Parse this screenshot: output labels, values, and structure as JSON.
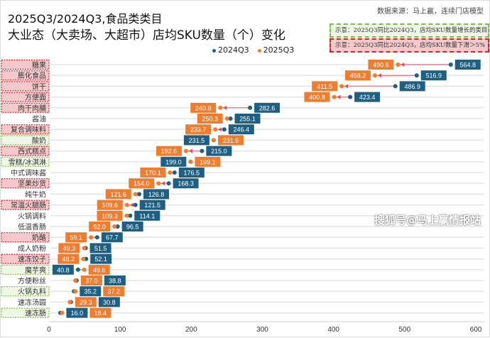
{
  "source": "数据来源：马上赢，连续门店模型",
  "title_line1": "2025Q3/2024Q3,食品类类目",
  "title_line2": "大业态（大卖场、大超市）店均SKU数量（个）变化",
  "note_green": "示意：2025Q3同比2024Q3，店均SKU数量增长的类目",
  "note_red": "示意：2025Q3同比2024Q3，店均SKU数量下滑＞5%",
  "watermark": "搜狐号@马上赢情报站",
  "colors": {
    "s2024": "#1f5f82",
    "s2025": "#ed7d31",
    "green": "#77c043",
    "red": "#d2232a"
  },
  "chart_data": {
    "type": "dumbbell",
    "title": "2025Q3/2024Q3,食品类类目 大业态（大卖场、大超市）店均SKU数量（个）变化",
    "legend": [
      "2024Q3",
      "2025Q3"
    ],
    "legend_position": "top-center",
    "xlim": [
      0,
      600
    ],
    "xticks": [
      "0",
      "100",
      "200",
      "300",
      "400",
      "500",
      "600"
    ],
    "grid": true,
    "categories": [
      {
        "name": "糖果",
        "v2024": 564.8,
        "v2025": 490.6,
        "flag": "red"
      },
      {
        "name": "膨化食品",
        "v2024": 516.9,
        "v2025": 458.2,
        "flag": "red"
      },
      {
        "name": "饼干",
        "v2024": 486.9,
        "v2025": 411.5,
        "flag": "red"
      },
      {
        "name": "方便面",
        "v2024": 423.4,
        "v2025": 400.8,
        "flag": "red"
      },
      {
        "name": "肉干肉脯",
        "v2024": 282.6,
        "v2025": 240.8,
        "flag": "red"
      },
      {
        "name": "酱油",
        "v2024": 255.1,
        "v2025": 250.3,
        "flag": ""
      },
      {
        "name": "复合调味料",
        "v2024": 246.4,
        "v2025": 233.7,
        "flag": "red"
      },
      {
        "name": "酸奶",
        "v2024": 231.5,
        "v2025": 231.6,
        "flag": "green"
      },
      {
        "name": "西式糕点",
        "v2024": 215.0,
        "v2025": 192.6,
        "flag": "red"
      },
      {
        "name": "雪糕/冰淇淋",
        "v2024": 199.0,
        "v2025": 199.1,
        "flag": "green"
      },
      {
        "name": "中式调味酱",
        "v2024": 176.5,
        "v2025": 170.1,
        "flag": ""
      },
      {
        "name": "坚果炒货",
        "v2024": 168.3,
        "v2025": 154.0,
        "flag": "red"
      },
      {
        "name": "纯牛奶",
        "v2024": 126.8,
        "v2025": 121.6,
        "flag": ""
      },
      {
        "name": "常温火腿肠",
        "v2024": 121.5,
        "v2025": 109.6,
        "flag": "red"
      },
      {
        "name": "火锅调料",
        "v2024": 114.1,
        "v2025": 109.3,
        "flag": ""
      },
      {
        "name": "低温香肠",
        "v2024": 96.5,
        "v2025": 92.0,
        "flag": ""
      },
      {
        "name": "奶酪",
        "v2024": 67.7,
        "v2025": 59.1,
        "flag": "red"
      },
      {
        "name": "成人奶粉",
        "v2024": 51.5,
        "v2025": 49.3,
        "flag": ""
      },
      {
        "name": "速冻饺子",
        "v2024": 52.1,
        "v2025": 48.2,
        "flag": "red"
      },
      {
        "name": "魔芋爽",
        "v2024": 40.8,
        "v2025": 49.6,
        "flag": "green"
      },
      {
        "name": "方便粉丝",
        "v2024": 38.8,
        "v2025": 37.0,
        "flag": ""
      },
      {
        "name": "火锅丸料",
        "v2024": 35.2,
        "v2025": 37.2,
        "flag": "green"
      },
      {
        "name": "速冻汤圆",
        "v2024": 30.8,
        "v2025": 29.3,
        "flag": ""
      },
      {
        "name": "速冻肠",
        "v2024": 16.0,
        "v2025": 18.4,
        "flag": "green"
      }
    ]
  }
}
